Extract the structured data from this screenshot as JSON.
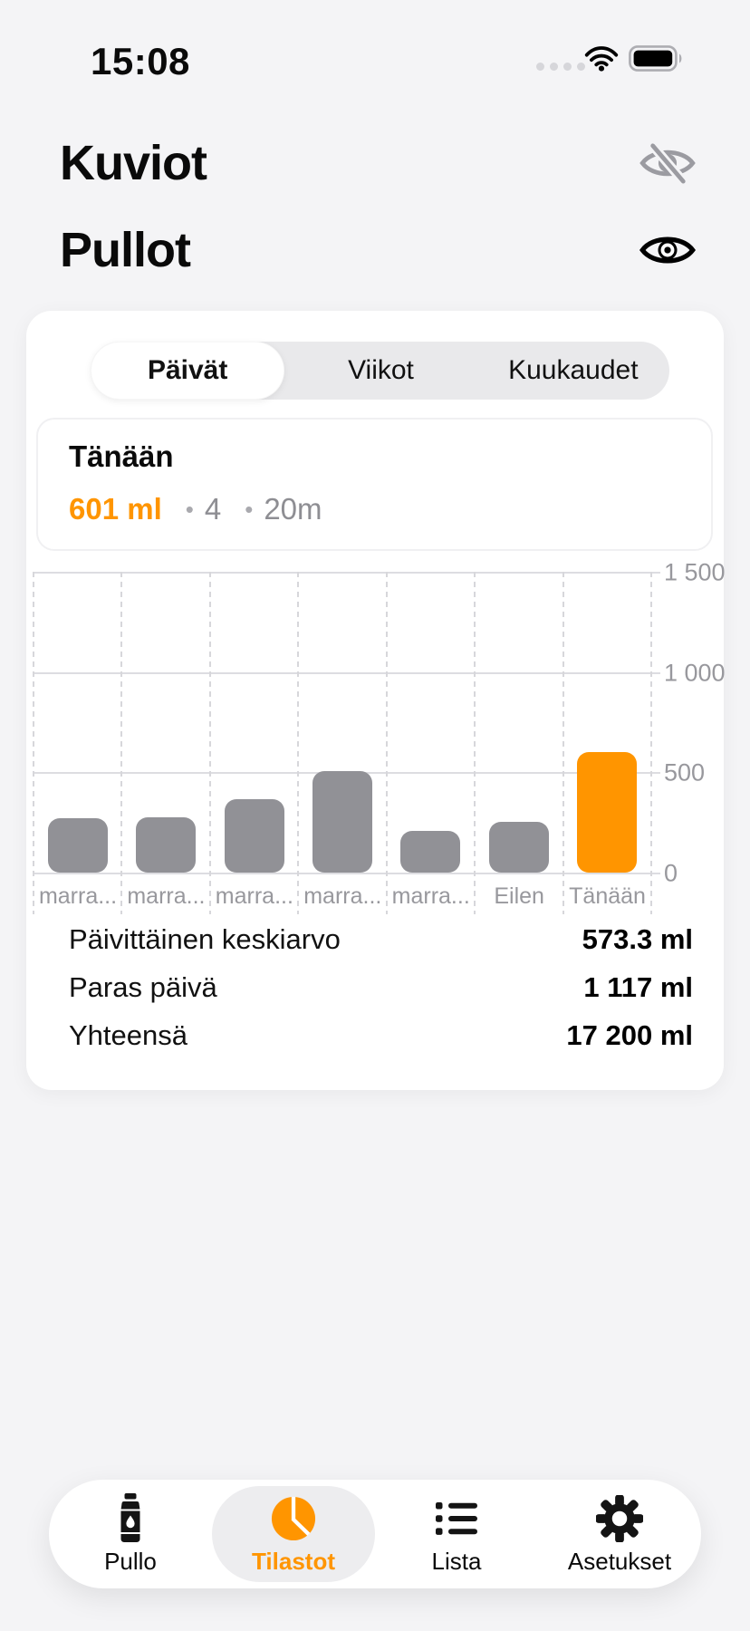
{
  "status_bar": {
    "time": "15:08"
  },
  "sections": [
    {
      "title": "Kuviot",
      "icon": "eye-slash-icon",
      "visible": false
    },
    {
      "title": "Pullot",
      "icon": "eye-icon",
      "visible": true
    }
  ],
  "segmented_control": {
    "options": [
      "Päivät",
      "Viikot",
      "Kuukaudet"
    ],
    "selected": "Päivät"
  },
  "today_card": {
    "title": "Tänään",
    "amount": "601 ml",
    "entries": "4",
    "duration": "20m"
  },
  "chart_data": {
    "type": "bar",
    "categories": [
      "marra...",
      "marra...",
      "marra...",
      "marra...",
      "marra...",
      "Eilen",
      "Tänään"
    ],
    "values": [
      270,
      275,
      365,
      505,
      210,
      255,
      601
    ],
    "highlighted_index": 6,
    "ylim": [
      0,
      1500
    ],
    "yticks": [
      0,
      500,
      1000,
      1500
    ],
    "ytick_labels": [
      "0",
      "500",
      "1 000",
      "1 500"
    ],
    "y_axis_side": "right",
    "grid": true,
    "bar_color": "#919196",
    "highlight_color": "#FF9500"
  },
  "stats": [
    {
      "label": "Päivittäinen keskiarvo",
      "value": "573.3 ml"
    },
    {
      "label": "Paras päivä",
      "value": "1 117 ml"
    },
    {
      "label": "Yhteensä",
      "value": "17 200 ml"
    }
  ],
  "tab_bar": {
    "items": [
      {
        "label": "Pullo",
        "icon": "bottle-icon",
        "selected": false
      },
      {
        "label": "Tilastot",
        "icon": "pie-chart-icon",
        "selected": true
      },
      {
        "label": "Lista",
        "icon": "list-icon",
        "selected": false
      },
      {
        "label": "Asetukset",
        "icon": "gear-icon",
        "selected": false
      }
    ]
  },
  "colors": {
    "accent": "#FF9500",
    "bar_gray": "#919196",
    "muted_text": "#8E8E93"
  }
}
